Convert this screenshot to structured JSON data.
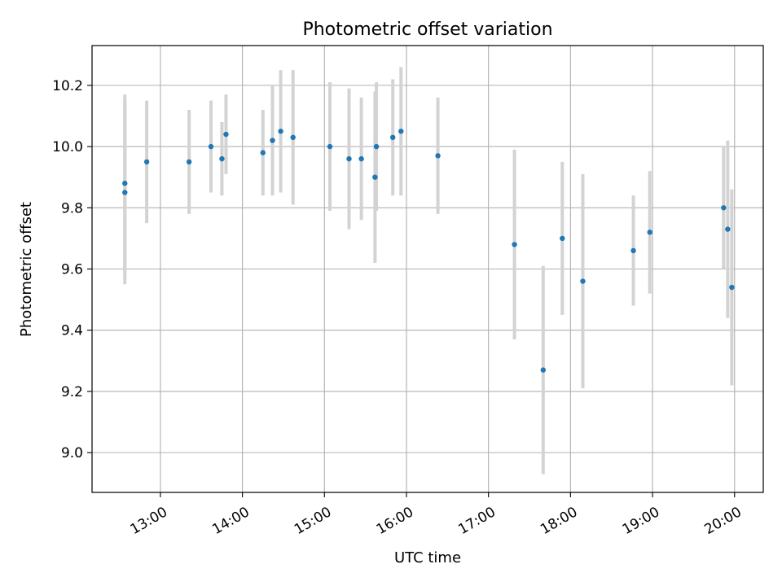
{
  "chart_data": {
    "type": "scatter",
    "title": "Photometric offset variation",
    "xlabel": "UTC time",
    "ylabel": "Photometric offset",
    "x_axis_type": "time",
    "xlim": [
      "12:10",
      "20:21"
    ],
    "ylim": [
      8.87,
      10.33
    ],
    "x_ticks": [
      "13:00",
      "14:00",
      "15:00",
      "16:00",
      "17:00",
      "18:00",
      "19:00",
      "20:00"
    ],
    "y_ticks": [
      "9.0",
      "9.2",
      "9.4",
      "9.6",
      "9.8",
      "10.0",
      "10.2"
    ],
    "grid": true,
    "legend": "none",
    "colors": {
      "point": "#1f77b4",
      "errorbar": "#d3d3d3",
      "grid": "#b0b0b0"
    },
    "series": [
      {
        "points": [
          {
            "x": "12:34",
            "y": 9.85,
            "err": 0.3
          },
          {
            "x": "12:34",
            "y": 9.88,
            "err": 0.29
          },
          {
            "x": "12:50",
            "y": 9.95,
            "err": 0.2
          },
          {
            "x": "13:21",
            "y": 9.95,
            "err": 0.17
          },
          {
            "x": "13:37",
            "y": 10.0,
            "err": 0.15
          },
          {
            "x": "13:45",
            "y": 9.96,
            "err": 0.12
          },
          {
            "x": "13:48",
            "y": 10.04,
            "err": 0.13
          },
          {
            "x": "14:15",
            "y": 9.98,
            "err": 0.14
          },
          {
            "x": "14:22",
            "y": 10.02,
            "err": 0.18
          },
          {
            "x": "14:28",
            "y": 10.05,
            "err": 0.2
          },
          {
            "x": "14:37",
            "y": 10.03,
            "err": 0.22
          },
          {
            "x": "15:04",
            "y": 10.0,
            "err": 0.21
          },
          {
            "x": "15:18",
            "y": 9.96,
            "err": 0.23
          },
          {
            "x": "15:27",
            "y": 9.96,
            "err": 0.2
          },
          {
            "x": "15:37",
            "y": 9.9,
            "err": 0.28
          },
          {
            "x": "15:38",
            "y": 10.0,
            "err": 0.21
          },
          {
            "x": "15:50",
            "y": 10.03,
            "err": 0.19
          },
          {
            "x": "15:56",
            "y": 10.05,
            "err": 0.21
          },
          {
            "x": "16:23",
            "y": 9.97,
            "err": 0.19
          },
          {
            "x": "17:19",
            "y": 9.68,
            "err": 0.31
          },
          {
            "x": "17:40",
            "y": 9.27,
            "err": 0.34
          },
          {
            "x": "17:54",
            "y": 9.7,
            "err": 0.25
          },
          {
            "x": "18:09",
            "y": 9.56,
            "err": 0.35
          },
          {
            "x": "18:46",
            "y": 9.66,
            "err": 0.18
          },
          {
            "x": "18:58",
            "y": 9.72,
            "err": 0.2
          },
          {
            "x": "19:52",
            "y": 9.8,
            "err": 0.2
          },
          {
            "x": "19:55",
            "y": 9.73,
            "err": 0.29
          },
          {
            "x": "19:58",
            "y": 9.54,
            "err": 0.32
          }
        ]
      }
    ]
  }
}
